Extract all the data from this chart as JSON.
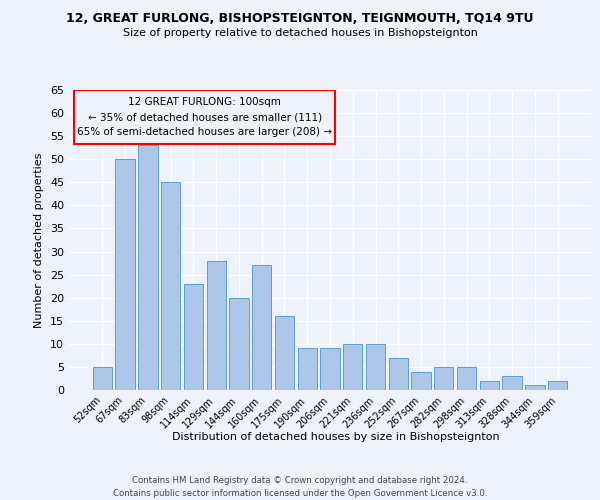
{
  "title": "12, GREAT FURLONG, BISHOPSTEIGNTON, TEIGNMOUTH, TQ14 9TU",
  "subtitle": "Size of property relative to detached houses in Bishopsteignton",
  "xlabel": "Distribution of detached houses by size in Bishopsteignton",
  "ylabel": "Number of detached properties",
  "categories": [
    "52sqm",
    "67sqm",
    "83sqm",
    "98sqm",
    "114sqm",
    "129sqm",
    "144sqm",
    "160sqm",
    "175sqm",
    "190sqm",
    "206sqm",
    "221sqm",
    "236sqm",
    "252sqm",
    "267sqm",
    "282sqm",
    "298sqm",
    "313sqm",
    "328sqm",
    "344sqm",
    "359sqm"
  ],
  "values": [
    5,
    50,
    53,
    45,
    23,
    28,
    20,
    27,
    16,
    9,
    9,
    10,
    10,
    7,
    4,
    5,
    5,
    2,
    3,
    1,
    2
  ],
  "bar_color": "#aec6e8",
  "bar_edge_color": "#5a9fd4",
  "background_color": "#eef3fb",
  "grid_color": "#ffffff",
  "annotation_line1": "12 GREAT FURLONG: 100sqm",
  "annotation_line2": "← 35% of detached houses are smaller (111)",
  "annotation_line3": "65% of semi-detached houses are larger (208) →",
  "annotation_box_color": "#ff0000",
  "footer_line1": "Contains HM Land Registry data © Crown copyright and database right 2024.",
  "footer_line2": "Contains public sector information licensed under the Open Government Licence v3.0.",
  "ylim": [
    0,
    65
  ],
  "yticks": [
    0,
    5,
    10,
    15,
    20,
    25,
    30,
    35,
    40,
    45,
    50,
    55,
    60,
    65
  ]
}
